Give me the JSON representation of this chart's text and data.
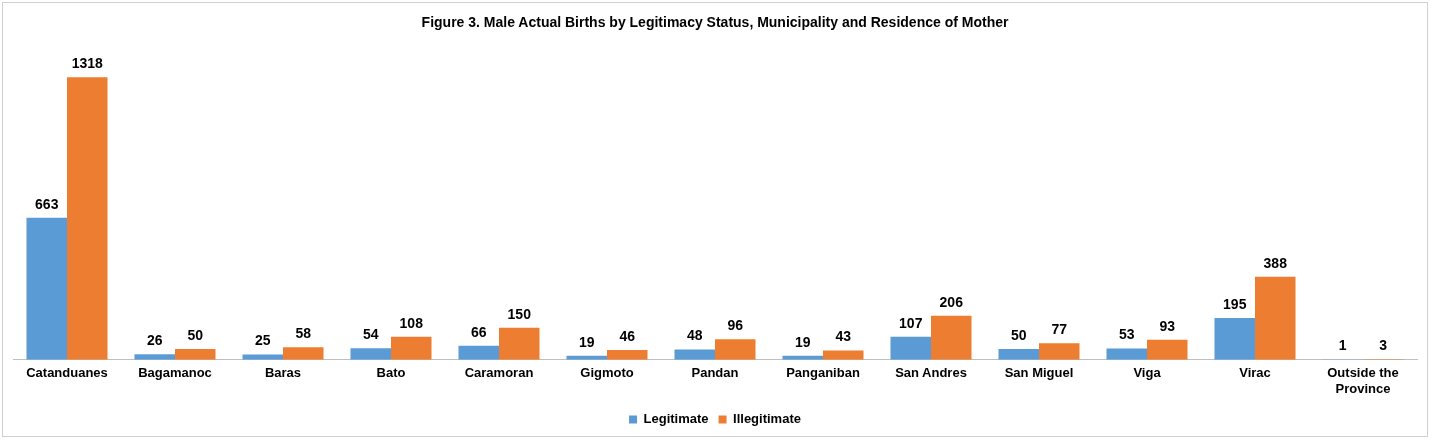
{
  "chart_data": {
    "type": "bar",
    "title": "Figure 3. Male Actual Births by Legitimacy Status, Municipality and Residence of Mother",
    "categories": [
      "Catanduanes",
      "Bagamanoc",
      "Baras",
      "Bato",
      "Caramoran",
      "Gigmoto",
      "Pandan",
      "Panganiban",
      "San Andres",
      "San Miguel",
      "Viga",
      "Virac",
      "Outside the Province"
    ],
    "series": [
      {
        "name": "Legitimate",
        "color": "#5b9bd5",
        "values": [
          663,
          26,
          25,
          54,
          66,
          19,
          48,
          19,
          107,
          50,
          53,
          195,
          1
        ]
      },
      {
        "name": "Illegitimate",
        "color": "#ed7d31",
        "values": [
          1318,
          50,
          58,
          108,
          150,
          46,
          96,
          43,
          206,
          77,
          93,
          388,
          3
        ]
      }
    ],
    "data_labels": true,
    "legend": "bottom",
    "grid": false,
    "tick_labels": "x"
  }
}
